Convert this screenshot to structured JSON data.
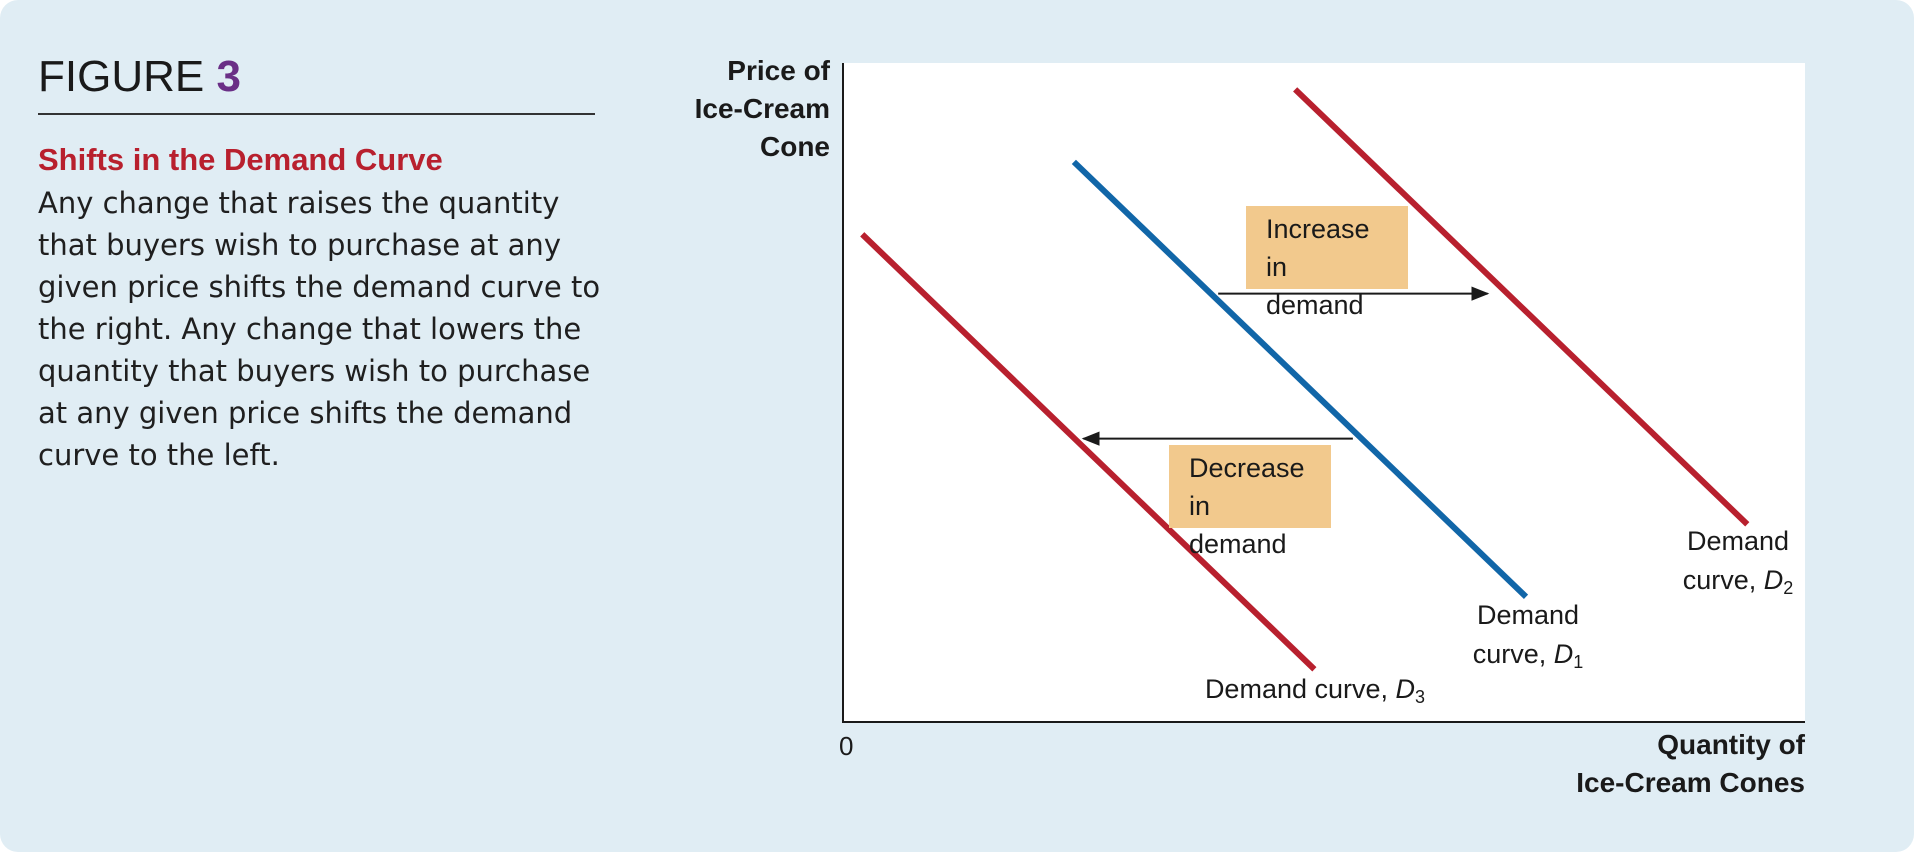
{
  "figure": {
    "label": "FIGURE",
    "number": "3",
    "subtitle": "Shifts in the Demand Curve",
    "caption": "Any change that raises the quantity that buyers wish to purchase at any given price shifts the demand curve to the right. Any change that lowers the quantity that buyers wish to purchase at any given price shifts the demand curve to the left."
  },
  "colors": {
    "background": "#e0edf4",
    "plot_area": "#ffffff",
    "accent_red": "#b8202e",
    "accent_blue": "#1166a8",
    "figure_number": "#6a2f86",
    "note_fill": "#f2c98d"
  },
  "chart_data": {
    "type": "line",
    "title": "",
    "ylabel_lines": [
      "Price of",
      "Ice-Cream",
      "Cone"
    ],
    "xlabel_lines": [
      "Quantity of",
      "Ice-Cream Cones"
    ],
    "origin_label": "0",
    "xlim": [
      0,
      100
    ],
    "ylim": [
      0,
      100
    ],
    "grid": false,
    "legend": "none",
    "series": [
      {
        "id": "d3",
        "label_prefix": "Demand curve,",
        "label_sym": "D",
        "label_sub": "3",
        "color": "#b8202e",
        "points": [
          [
            2,
            74
          ],
          [
            49,
            8
          ]
        ]
      },
      {
        "id": "d1",
        "label_prefix": "Demand",
        "label_line2": "curve,",
        "label_sym": "D",
        "label_sub": "1",
        "color": "#1166a8",
        "points": [
          [
            24,
            85
          ],
          [
            71,
            19
          ]
        ]
      },
      {
        "id": "d2",
        "label_prefix": "Demand",
        "label_line2": "curve,",
        "label_sym": "D",
        "label_sub": "2",
        "color": "#b8202e",
        "points": [
          [
            47,
            96
          ],
          [
            94,
            30
          ]
        ]
      }
    ],
    "annotations": [
      {
        "id": "increase",
        "lines": [
          "Increase",
          "in demand"
        ],
        "arrow_from": [
          39,
          65
        ],
        "arrow_to": [
          67,
          65
        ]
      },
      {
        "id": "decrease",
        "lines": [
          "Decrease",
          "in demand"
        ],
        "arrow_from": [
          53,
          43
        ],
        "arrow_to": [
          25,
          43
        ]
      }
    ]
  }
}
